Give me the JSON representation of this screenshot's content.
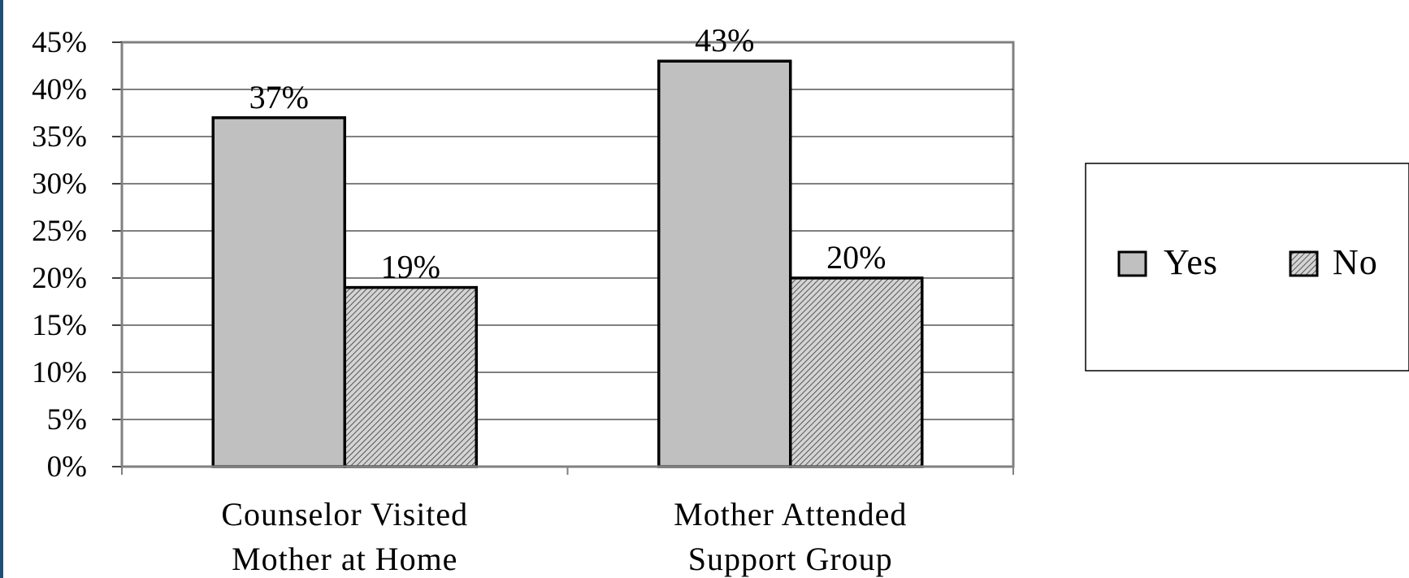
{
  "chart_data": {
    "type": "bar",
    "categories": [
      [
        "Counselor Visited",
        "Mother at Home"
      ],
      [
        "Mother Attended",
        "Support Group"
      ]
    ],
    "series": [
      {
        "name": "Yes",
        "values": [
          37,
          43
        ],
        "labels": [
          "37%",
          "43%"
        ],
        "fill": "#c0c0c0",
        "pattern": "solid"
      },
      {
        "name": "No",
        "values": [
          19,
          20
        ],
        "labels": [
          "19%",
          "20%"
        ],
        "fill": "#c0c0c0",
        "pattern": "diagonal-hatch"
      }
    ],
    "yticks": [
      "0%",
      "5%",
      "10%",
      "15%",
      "20%",
      "25%",
      "30%",
      "35%",
      "40%",
      "45%"
    ],
    "ylim": [
      0,
      45
    ],
    "grid": true,
    "legend": "right",
    "title": "",
    "xlabel": "",
    "ylabel": ""
  }
}
